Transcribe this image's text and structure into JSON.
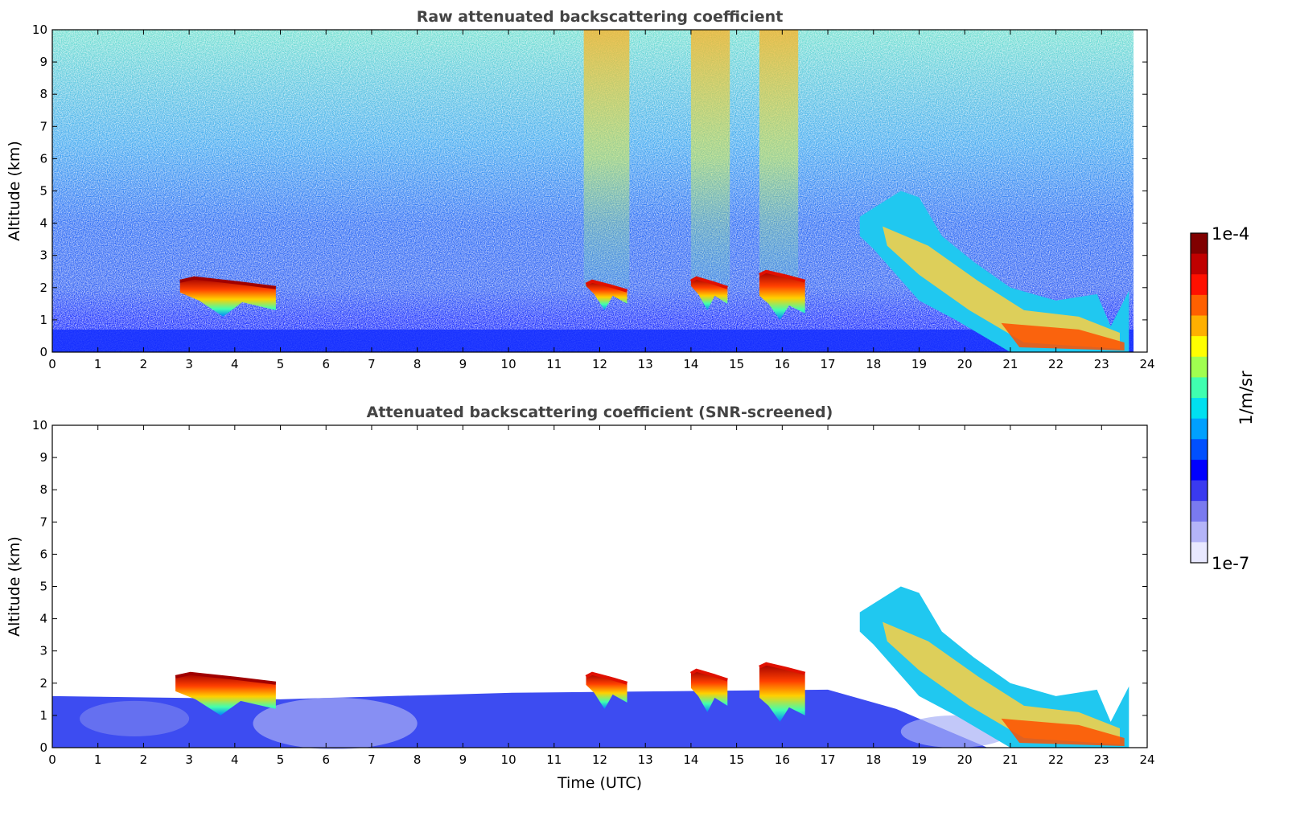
{
  "chart_data": [
    {
      "type": "heatmap",
      "title": "Raw attenuated backscattering coefficient",
      "xlabel": "",
      "ylabel": "Altitude (km)",
      "xlim": [
        0,
        24
      ],
      "ylim": [
        0,
        10
      ],
      "xticks": [
        "0",
        "1",
        "2",
        "3",
        "4",
        "5",
        "6",
        "7",
        "8",
        "9",
        "10",
        "11",
        "12",
        "13",
        "14",
        "15",
        "16",
        "17",
        "18",
        "19",
        "20",
        "21",
        "22",
        "23",
        "24"
      ],
      "yticks": [
        "0",
        "1",
        "2",
        "3",
        "4",
        "5",
        "6",
        "7",
        "8",
        "9",
        "10"
      ],
      "data_end_time": 23.7,
      "features": [
        {
          "name": "cloud layer",
          "t_start": 2.8,
          "t_end": 4.9,
          "base_km": 1.1,
          "top_km": 2.3,
          "peak": "dark-red"
        },
        {
          "name": "cloud layer",
          "t_start": 11.7,
          "t_end": 12.6,
          "base_km": 1.3,
          "top_km": 2.2,
          "peak": "red"
        },
        {
          "name": "cloud layer",
          "t_start": 14.0,
          "t_end": 14.8,
          "base_km": 1.3,
          "top_km": 2.3,
          "peak": "red"
        },
        {
          "name": "cloud layer",
          "t_start": 15.5,
          "t_end": 16.5,
          "base_km": 1.0,
          "top_km": 2.5,
          "peak": "red"
        },
        {
          "name": "descending aerosol layer",
          "t_start": 17.7,
          "t_end": 23.6,
          "base_km": 0.0,
          "top_km": 5.0,
          "peak": "orange-red"
        }
      ],
      "background": "noisy signal increasing with altitude; bright columns near 11.7-12.6, 14.0-14.8, 15.5-16.3 h"
    },
    {
      "type": "heatmap",
      "title": "Attenuated backscattering coefficient (SNR-screened)",
      "xlabel": "Time (UTC)",
      "ylabel": "Altitude (km)",
      "xlim": [
        0,
        24
      ],
      "ylim": [
        0,
        10
      ],
      "xticks": [
        "0",
        "1",
        "2",
        "3",
        "4",
        "5",
        "6",
        "7",
        "8",
        "9",
        "10",
        "11",
        "12",
        "13",
        "14",
        "15",
        "16",
        "17",
        "18",
        "19",
        "20",
        "21",
        "22",
        "23",
        "24"
      ],
      "yticks": [
        "0",
        "1",
        "2",
        "3",
        "4",
        "5",
        "6",
        "7",
        "8",
        "9",
        "10"
      ],
      "data_end_time": 23.7,
      "features": [
        {
          "name": "boundary layer",
          "t_start": 0.0,
          "t_end": 18.5,
          "base_km": 0.0,
          "top_km": 1.8,
          "peak": "blue"
        },
        {
          "name": "cloud layer",
          "t_start": 2.7,
          "t_end": 4.9,
          "base_km": 1.0,
          "top_km": 2.3,
          "peak": "dark-red"
        },
        {
          "name": "cloud layer",
          "t_start": 11.7,
          "t_end": 12.6,
          "base_km": 1.2,
          "top_km": 2.3,
          "peak": "red"
        },
        {
          "name": "cloud layer",
          "t_start": 14.0,
          "t_end": 14.8,
          "base_km": 1.1,
          "top_km": 2.4,
          "peak": "red"
        },
        {
          "name": "cloud layer",
          "t_start": 15.5,
          "t_end": 16.5,
          "base_km": 0.8,
          "top_km": 2.6,
          "peak": "red"
        },
        {
          "name": "descending aerosol layer",
          "t_start": 17.7,
          "t_end": 23.6,
          "base_km": 0.0,
          "top_km": 5.0,
          "peak": "orange-red"
        }
      ]
    }
  ],
  "colorbar": {
    "label": "1/m/sr",
    "max_label": "1e-4",
    "min_label": "1e-7",
    "colors": [
      "#e8e8ff",
      "#b4b4f8",
      "#7a7af0",
      "#3a3af0",
      "#0000ff",
      "#0050ff",
      "#00a0ff",
      "#00e0f0",
      "#40ffb0",
      "#a0ff50",
      "#ffff00",
      "#ffb000",
      "#ff6000",
      "#ff1000",
      "#c00000",
      "#800000"
    ]
  }
}
